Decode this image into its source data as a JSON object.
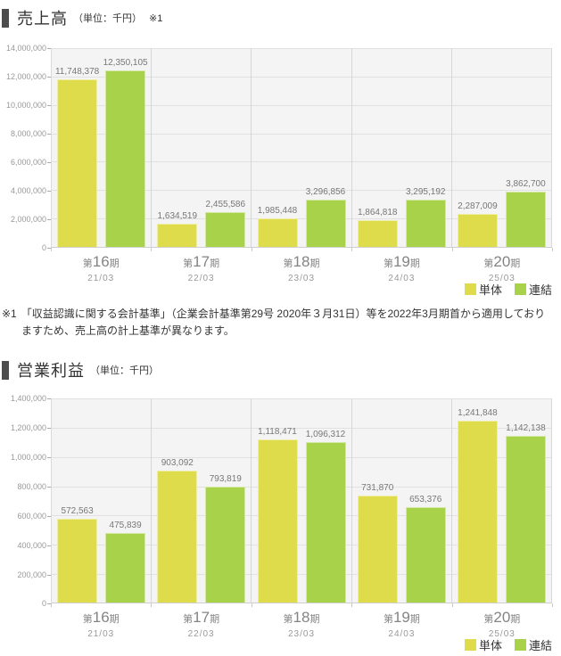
{
  "colors": {
    "tandoku_bar": "#dfdc4c",
    "renketsu_bar": "#a9d24b",
    "title_marker": "#4d4d4d",
    "plot_background": "#f4f4f4"
  },
  "footnote": {
    "marker": "※1",
    "text": "「収益認識に関する会計基準」（企業会計基準第29号 2020年３月31日）等を2022年3月期首から適用しておりますため、売上高の計上基準が異なります。"
  },
  "chart_data": [
    {
      "type": "bar",
      "title": "売上高",
      "unit_label": "（単位：千円）",
      "note_ref": "※1",
      "categories": [
        "第16期",
        "第17期",
        "第18期",
        "第19期",
        "第20期"
      ],
      "category_subs": [
        "21/03",
        "22/03",
        "23/03",
        "24/03",
        "25/03"
      ],
      "series": [
        {
          "name": "単体",
          "color": "#dfdc4c",
          "values": [
            11748378,
            1634519,
            1985448,
            1864818,
            2287009
          ]
        },
        {
          "name": "連結",
          "color": "#a9d24b",
          "values": [
            12350105,
            2455586,
            3296856,
            3295192,
            3862700
          ]
        }
      ],
      "ylim": [
        0,
        14000000
      ],
      "y_step": 2000000,
      "grid": true,
      "legend_position": "bottom-right"
    },
    {
      "type": "bar",
      "title": "営業利益",
      "unit_label": "（単位：千円）",
      "note_ref": "",
      "categories": [
        "第16期",
        "第17期",
        "第18期",
        "第19期",
        "第20期"
      ],
      "category_subs": [
        "21/03",
        "22/03",
        "23/03",
        "24/03",
        "25/03"
      ],
      "series": [
        {
          "name": "単体",
          "color": "#dfdc4c",
          "values": [
            572563,
            903092,
            1118471,
            731870,
            1241848
          ]
        },
        {
          "name": "連結",
          "color": "#a9d24b",
          "values": [
            475839,
            793819,
            1096312,
            653376,
            1142138
          ]
        }
      ],
      "ylim": [
        0,
        1400000
      ],
      "y_step": 200000,
      "grid": true,
      "legend_position": "bottom-right"
    }
  ]
}
